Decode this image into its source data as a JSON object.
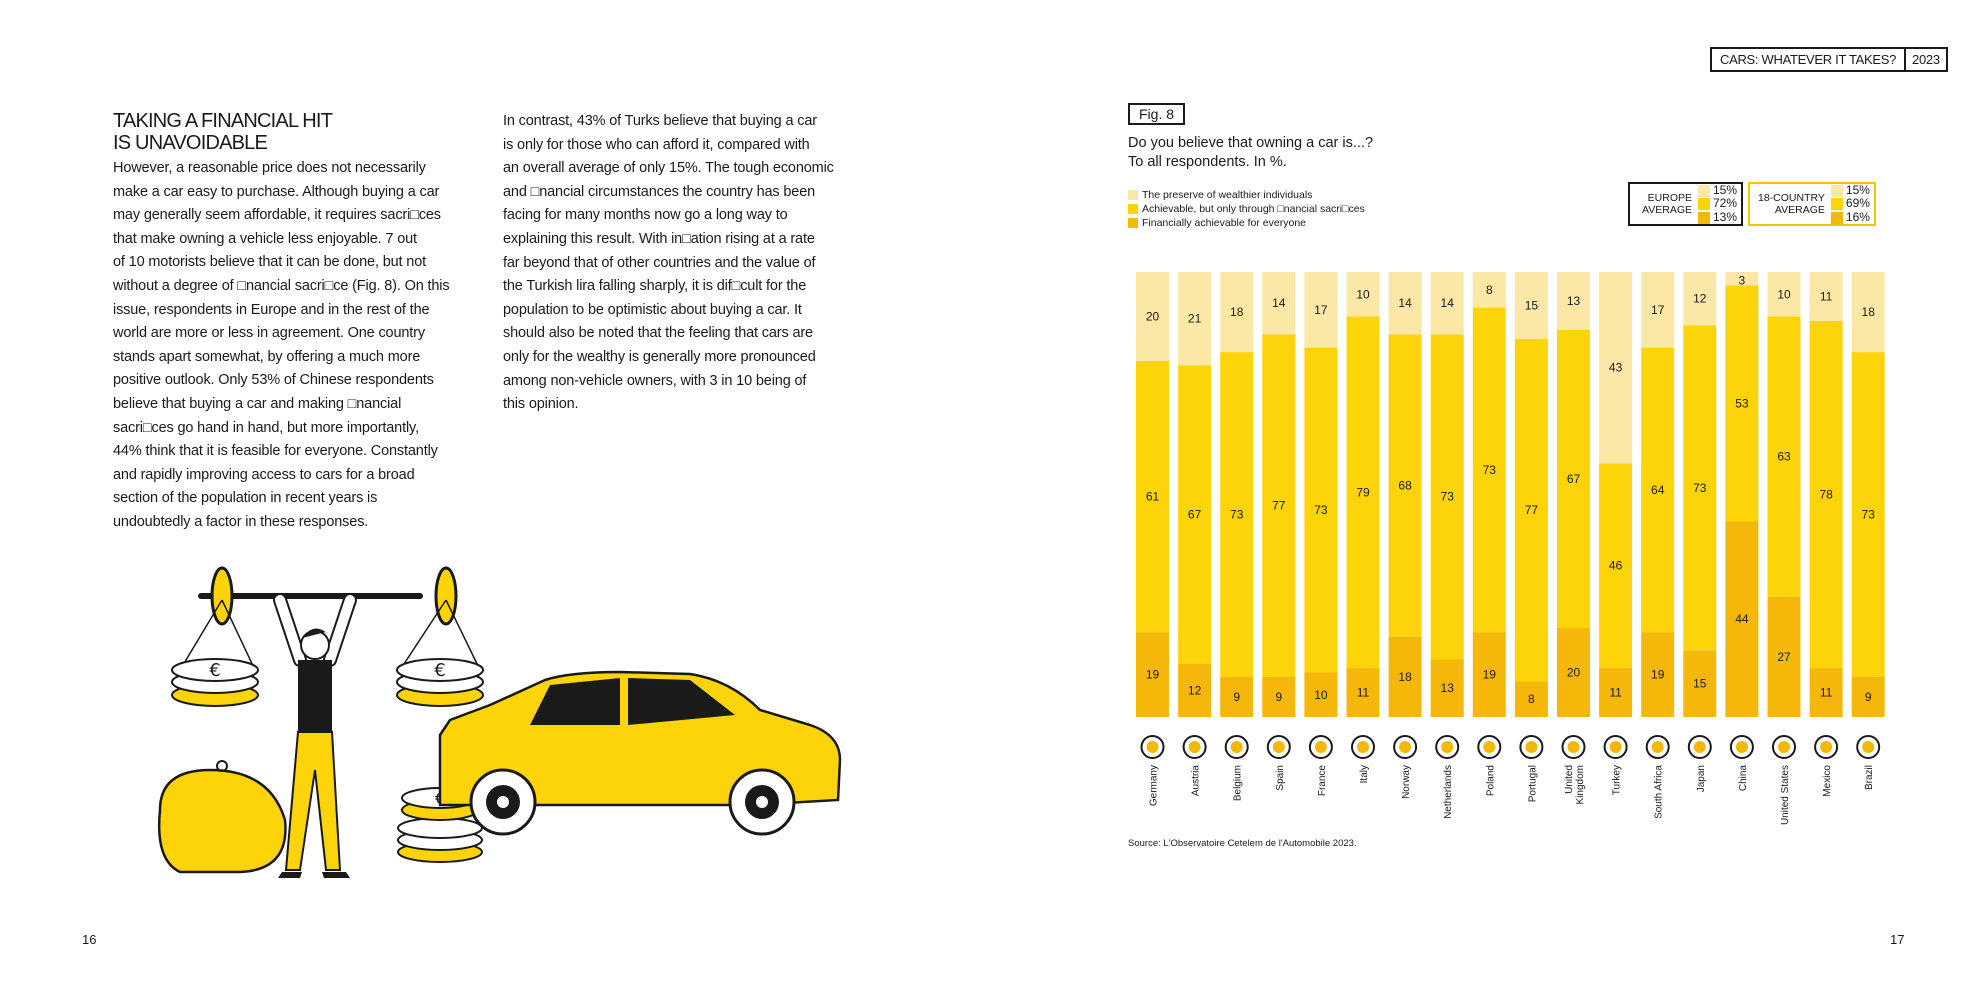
{
  "header": {
    "title": "CARS: WHATEVER IT TAKES?",
    "year": "2023"
  },
  "left": {
    "heading": "TAKING A FINANCIAL HIT\nIS UNAVOIDABLE",
    "paragraph1": "However, a reasonable price does not necessarily\nmake a car easy to purchase. Although buying a car\nmay generally seem affordable, it requires sacri□ces\nthat make owning a vehicle less enjoyable. 7 out\nof 10 motorists believe that it can be done, but not\nwithout a degree of □nancial sacri□ce (Fig. 8). On this\nissue, respondents in Europe and in the rest of the\nworld are more or less in agreement. One country\nstands apart somewhat, by offering a much more\npositive outlook. Only 53% of Chinese respondents\nbelieve that buying a car and making □nancial\nsacri□ces go hand in hand, but more importantly,\n44% think that it is feasible for everyone. Constantly\nand rapidly improving access to cars for a broad\nsection of the population in recent years is\nundoubtedly a factor in these responses.",
    "paragraph2": "In contrast, 43% of Turks believe that buying a car\nis only for those who can afford it, compared with\nan overall average of only 15%. The tough economic\nand □nancial circumstances the country has been\nfacing for many months now go a long way to\nexplaining this result. With in□ation rising at a rate\nfar beyond that of other countries and the value of\nthe Turkish lira falling sharply, it is dif□cult for the\npopulation to be optimistic about buying a car. It\nshould also be noted that the feeling that cars are\nonly for the wealthy is generally more pronounced\namong non-vehicle owners, with 3 in 10 being of\nthis opinion."
  },
  "page_numbers": {
    "left": "16",
    "right": "17"
  },
  "figure": {
    "label": "Fig. 8",
    "question": "Do you believe that owning a car is...?\nTo all respondents. In %.",
    "source": "Source: L'Observatoire Cetelem de l'Automobile 2023.",
    "europe_average": {
      "label": "EUROPE\nAVERAGE",
      "values": [
        "15%",
        "72%",
        "13%"
      ]
    },
    "all_average": {
      "label": "18-COUNTRY\nAVERAGE",
      "values": [
        "15%",
        "69%",
        "16%"
      ]
    }
  },
  "colors": {
    "wealthy": "#fbe8a6",
    "sacrifice": "#fdd30a",
    "everyone": "#f5b70a",
    "dark": "#1a1a1a"
  },
  "chart_data": {
    "type": "bar",
    "stacked": true,
    "categories": [
      "Germany",
      "Austria",
      "Belgium",
      "Spain",
      "France",
      "Italy",
      "Norway",
      "Netherlands",
      "Poland",
      "Portugal",
      "United\nKingdom",
      "Turkey",
      "South Africa",
      "Japan",
      "China",
      "United States",
      "Mexico",
      "Brazil"
    ],
    "series": [
      {
        "name": "Financially achievable for everyone",
        "values": [
          19,
          12,
          9,
          9,
          10,
          11,
          18,
          13,
          19,
          8,
          20,
          11,
          19,
          15,
          44,
          27,
          11,
          9
        ]
      },
      {
        "name": "Achievable, but only through □nancial sacri□ces",
        "values": [
          61,
          67,
          73,
          77,
          73,
          79,
          68,
          73,
          73,
          77,
          67,
          46,
          64,
          73,
          53,
          63,
          78,
          73
        ]
      },
      {
        "name": "The preserve of wealthier individuals",
        "values": [
          20,
          21,
          18,
          14,
          17,
          10,
          14,
          14,
          8,
          15,
          13,
          43,
          17,
          12,
          3,
          10,
          11,
          18
        ]
      }
    ],
    "ylim": [
      0,
      100
    ]
  }
}
